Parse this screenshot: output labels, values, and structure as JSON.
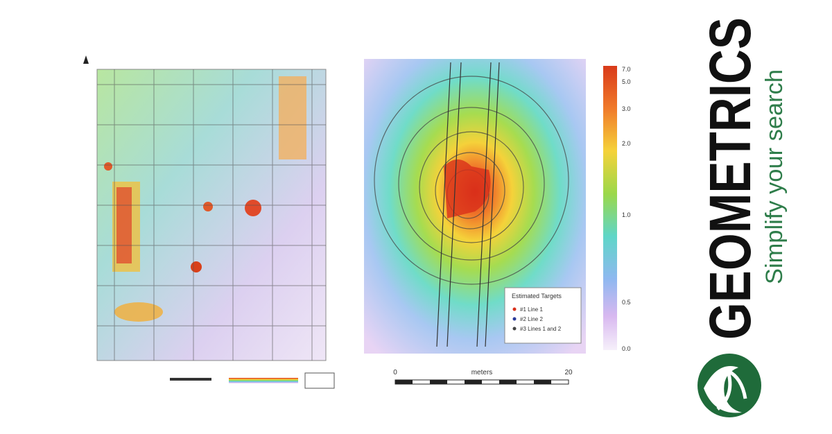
{
  "right_map": {
    "colorbar_labels": [
      "7.0",
      "5.0",
      "3.0",
      "2.0",
      "1.0",
      "0.5",
      "0.0"
    ],
    "legend": {
      "title": "Estimated Targets",
      "items": [
        "#1 Line 1",
        "#2 Line 2",
        "#3 Lines 1 and 2"
      ]
    },
    "scale": {
      "start": "0",
      "unit": "meters",
      "end": "20"
    }
  },
  "logo": {
    "name": "GEOMETRICS",
    "tagline": "Simplify your search"
  }
}
